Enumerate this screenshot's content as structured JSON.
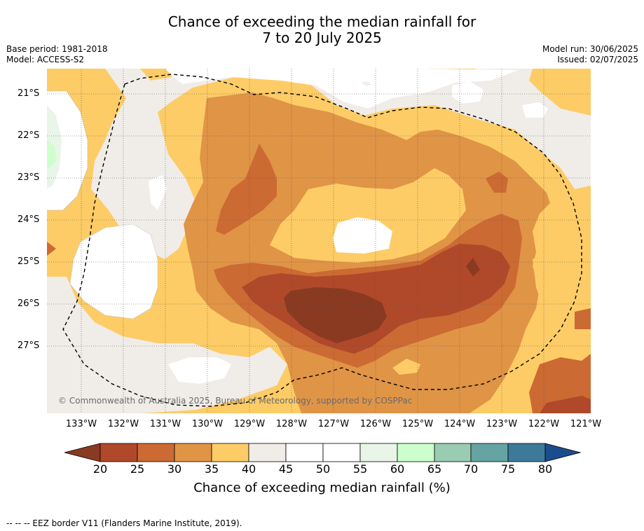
{
  "title_line1": "Chance of exceeding the median rainfall for",
  "title_line2": "7 to 20 July 2025",
  "base_period": "Base period: 1981-2018",
  "model": "Model: ACCESS-S2",
  "model_run": "Model run: 30/06/2025",
  "issued": "Issued: 02/07/2025",
  "copyright": "© Commonwealth of Australia 2025, Bureau of Meteorology, supported by COSPPac",
  "footnote": "--  --  -- EEZ border V11 (Flanders Marine Institute, 2019).",
  "lat_labels": [
    "21°S",
    "22°S",
    "23°S",
    "24°S",
    "25°S",
    "26°S",
    "27°S"
  ],
  "lon_labels": [
    "133°W",
    "132°W",
    "131°W",
    "130°W",
    "129°W",
    "128°W",
    "127°W",
    "126°W",
    "125°W",
    "124°W",
    "123°W",
    "122°W",
    "121°W"
  ],
  "colorbar": {
    "label": "Chance of exceeding median rainfall (%)",
    "ticks": [
      "20",
      "25",
      "30",
      "35",
      "40",
      "45",
      "50",
      "55",
      "60",
      "65",
      "70",
      "75",
      "80"
    ],
    "colors": {
      "lt20": "#8b3a22",
      "20-25": "#b0492a",
      "25-30": "#cc6a33",
      "30-35": "#e09446",
      "35-40": "#fdcc66",
      "40-45": "#f0ece8",
      "45-50": "#ffffff",
      "50-55": "#ffffff",
      "55-60": "#e8f5e8",
      "60-65": "#ccffcc",
      "65-70": "#99ccb2",
      "70-75": "#66a3a3",
      "75-80": "#3d7a99",
      "gt80": "#1a4d8c"
    }
  }
}
